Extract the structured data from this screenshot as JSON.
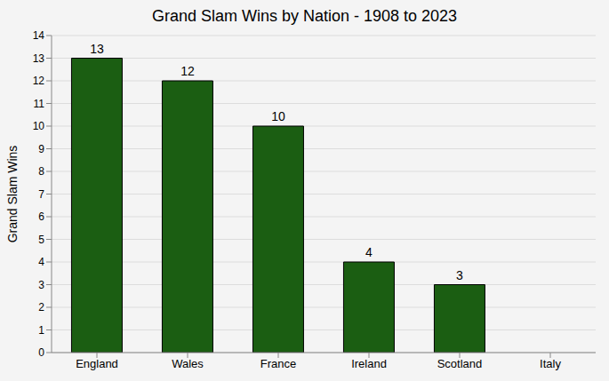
{
  "chart_data": {
    "type": "bar",
    "title": "Grand Slam Wins by Nation - 1908 to 2023",
    "ylabel": "Grand Slam Wins",
    "categories": [
      "England",
      "Wales",
      "France",
      "Ireland",
      "Scotland",
      "Italy"
    ],
    "values": [
      13,
      12,
      10,
      4,
      3,
      0
    ],
    "color": "#1b5e12",
    "ylim": [
      0,
      14
    ],
    "yticks": [
      0,
      1,
      2,
      3,
      4,
      5,
      6,
      7,
      8,
      9,
      10,
      11,
      12,
      13,
      14
    ],
    "grid": true,
    "data_labels": true
  }
}
